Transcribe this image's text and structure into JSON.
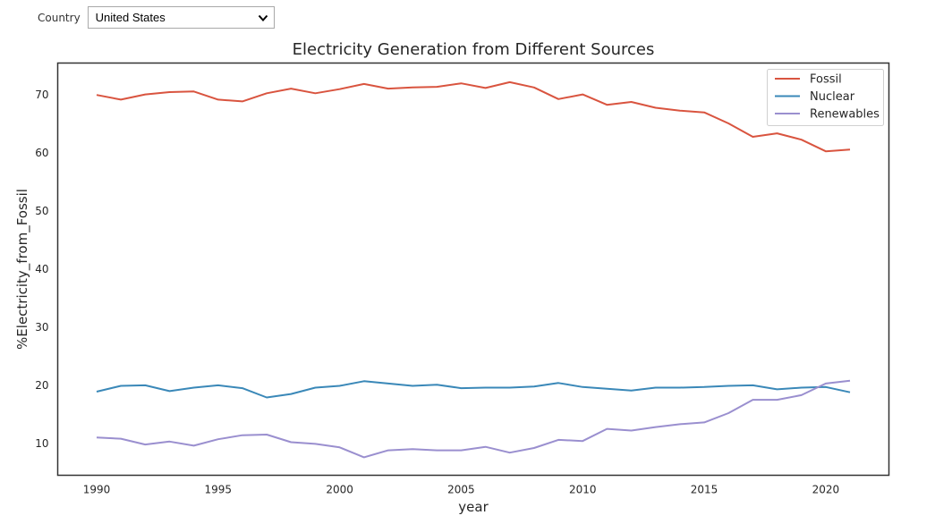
{
  "filter": {
    "label": "Country",
    "selected": "United States"
  },
  "chart_data": {
    "type": "line",
    "title": "Electricity Generation from Different Sources",
    "xlabel": "year",
    "ylabel": "%Electricity_from_Fossil",
    "x": [
      1990,
      1991,
      1992,
      1993,
      1994,
      1995,
      1996,
      1997,
      1998,
      1999,
      2000,
      2001,
      2002,
      2003,
      2004,
      2005,
      2006,
      2007,
      2008,
      2009,
      2010,
      2011,
      2012,
      2013,
      2014,
      2015,
      2016,
      2017,
      2018,
      2019,
      2020,
      2021
    ],
    "xlim": [
      1988.4,
      2022.6
    ],
    "ylim": [
      4.5,
      75.5
    ],
    "xticks": [
      1990,
      1995,
      2000,
      2005,
      2010,
      2015,
      2020
    ],
    "yticks": [
      10,
      20,
      30,
      40,
      50,
      60,
      70
    ],
    "grid": false,
    "legend_position": "top-right",
    "series": [
      {
        "name": "Fossil",
        "color": "#d9543f",
        "values": [
          70.0,
          69.2,
          70.1,
          70.5,
          70.6,
          69.2,
          68.9,
          70.3,
          71.1,
          70.3,
          71.0,
          71.9,
          71.1,
          71.3,
          71.4,
          72.0,
          71.2,
          72.2,
          71.3,
          69.3,
          70.1,
          68.3,
          68.8,
          67.8,
          67.3,
          67.0,
          65.1,
          62.8,
          63.4,
          62.3,
          60.3,
          60.6
        ]
      },
      {
        "name": "Nuclear",
        "color": "#3a88b8",
        "values": [
          18.9,
          19.9,
          20.0,
          19.0,
          19.6,
          20.0,
          19.5,
          17.9,
          18.5,
          19.6,
          19.9,
          20.7,
          20.3,
          19.9,
          20.1,
          19.5,
          19.6,
          19.6,
          19.8,
          20.4,
          19.7,
          19.4,
          19.1,
          19.6,
          19.6,
          19.7,
          19.9,
          20.0,
          19.3,
          19.6,
          19.7,
          18.8
        ]
      },
      {
        "name": "Renewables",
        "color": "#9a8fcf",
        "values": [
          11.0,
          10.8,
          9.8,
          10.3,
          9.6,
          10.7,
          11.4,
          11.5,
          10.2,
          9.9,
          9.3,
          7.6,
          8.8,
          9.0,
          8.8,
          8.8,
          9.4,
          8.4,
          9.2,
          10.6,
          10.4,
          12.5,
          12.2,
          12.8,
          13.3,
          13.6,
          15.2,
          17.5,
          17.5,
          18.3,
          20.3,
          20.8
        ]
      }
    ]
  }
}
